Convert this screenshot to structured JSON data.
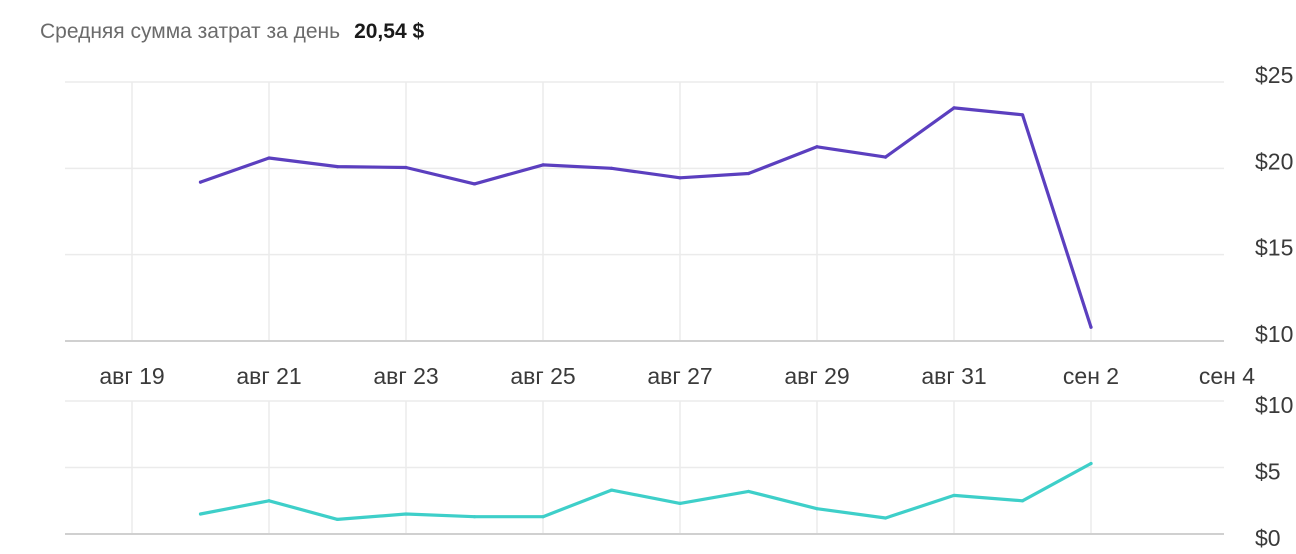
{
  "header": {
    "label": "Средняя сумма затрат за день",
    "value": "20,54 $"
  },
  "colors": {
    "top_series": "#5b3fbf",
    "bottom_series": "#3ecfc9",
    "grid": "#ebebeb",
    "axis": "#d0d0d0"
  },
  "chart_data": [
    {
      "type": "line",
      "title": "",
      "x": [
        "авг 20",
        "авг 21",
        "авг 22",
        "авг 23",
        "авг 24",
        "авг 25",
        "авг 26",
        "авг 27",
        "авг 28",
        "авг 29",
        "авг 30",
        "авг 31",
        "сен 1",
        "сен 2"
      ],
      "series": [
        {
          "values": [
            19.2,
            20.6,
            20.1,
            20.05,
            19.1,
            20.2,
            20.0,
            19.45,
            19.7,
            21.25,
            20.65,
            23.5,
            23.1,
            10.8
          ]
        }
      ],
      "x_ticks": [
        "авг 19",
        "авг 21",
        "авг 23",
        "авг 25",
        "авг 27",
        "авг 29",
        "авг 31",
        "сен 2",
        "сен 4"
      ],
      "y_ticks": [
        "$10",
        "$15",
        "$20",
        "$25"
      ],
      "ylim": [
        10,
        25
      ],
      "y_axis_side": "right",
      "grid": true
    },
    {
      "type": "line",
      "title": "",
      "x": [
        "авг 20",
        "авг 21",
        "авг 22",
        "авг 23",
        "авг 24",
        "авг 25",
        "авг 26",
        "авг 27",
        "авг 28",
        "авг 29",
        "авг 30",
        "авг 31",
        "сен 1",
        "сен 2"
      ],
      "series": [
        {
          "values": [
            1.5,
            2.5,
            1.1,
            1.5,
            1.3,
            1.3,
            3.3,
            2.3,
            3.2,
            1.9,
            1.2,
            2.9,
            2.5,
            5.3
          ]
        }
      ],
      "y_ticks": [
        "$0",
        "$5",
        "$10"
      ],
      "ylim": [
        0,
        10
      ],
      "y_axis_side": "right",
      "grid": true
    }
  ]
}
